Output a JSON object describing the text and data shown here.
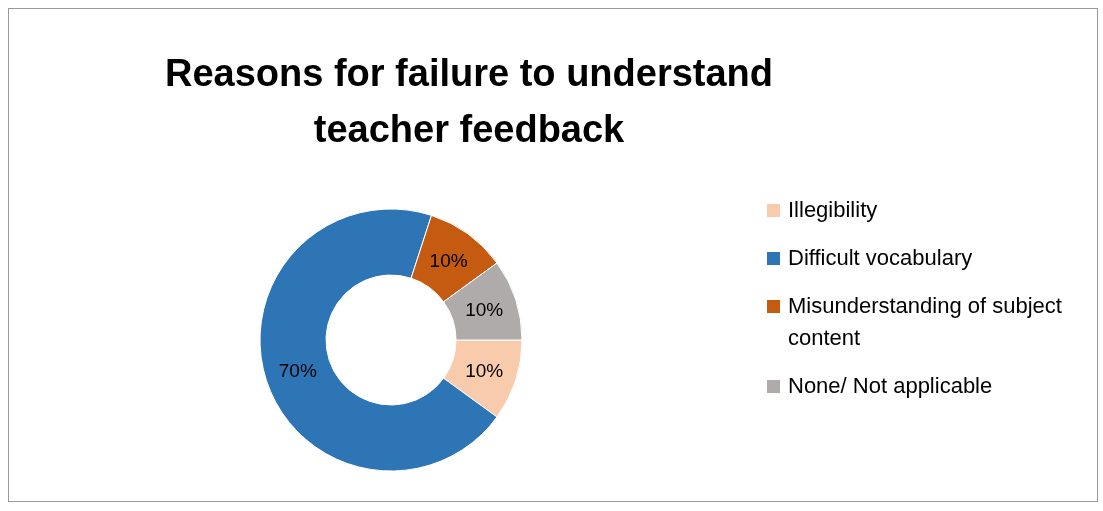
{
  "chart_data": {
    "type": "donut",
    "title": "Reasons for failure to understand teacher feedback",
    "categories": [
      "Illegibility",
      "Difficult vocabulary",
      "Misunderstanding of subject content",
      "None/ Not applicable"
    ],
    "values": [
      10,
      70,
      10,
      10
    ],
    "value_labels": [
      "10%",
      "70%",
      "10%",
      "10%"
    ],
    "colors": [
      "#f8cbad",
      "#2e75b6",
      "#c55a11",
      "#afabab"
    ],
    "legend": "right"
  }
}
